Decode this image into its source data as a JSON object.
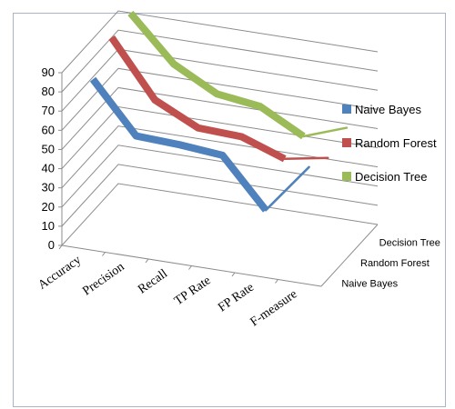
{
  "chart_data": {
    "type": "line",
    "style": "3d-line",
    "title": "",
    "categories": [
      "Accuracy",
      "Precision",
      "Recall",
      "TP Rate",
      "FP Rate",
      "F-measure"
    ],
    "ylim": [
      0,
      90
    ],
    "yticks": [
      0,
      10,
      20,
      30,
      40,
      50,
      60,
      70,
      80,
      90
    ],
    "grid": true,
    "legend_position": "right",
    "depth_labels": [
      "Decision Tree",
      "Random Forest",
      "Naive Bayes"
    ],
    "series": [
      {
        "name": "Naive Bayes",
        "color": "#4f81bd",
        "values": [
          83,
          57,
          56,
          54,
          29,
          55
        ]
      },
      {
        "name": "Random Forest",
        "color": "#c0504d",
        "values": [
          94,
          65,
          54,
          53,
          45,
          49
        ]
      },
      {
        "name": "Decision Tree",
        "color": "#9bbb59",
        "values": [
          96,
          73,
          61,
          58,
          46,
          54
        ]
      }
    ]
  }
}
